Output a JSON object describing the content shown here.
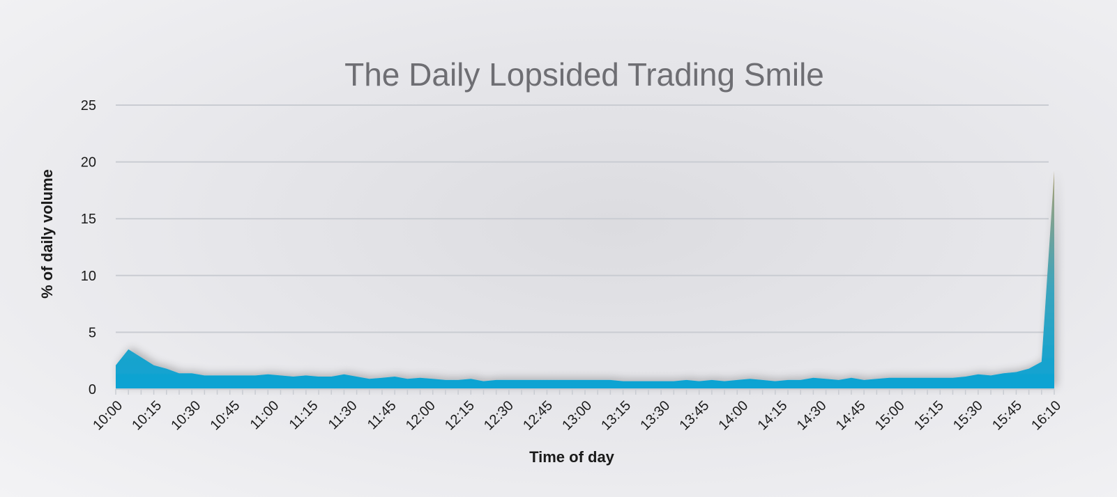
{
  "chart_data": {
    "type": "area",
    "title": "The Daily Lopsided Trading Smile",
    "xlabel": "Time of day",
    "ylabel": "% of daily volume",
    "ylim": [
      0,
      25
    ],
    "yticks": [
      0,
      5,
      10,
      15,
      20,
      25
    ],
    "grid": true,
    "legend": "none",
    "x_tick_labels": [
      "10:00",
      "10:15",
      "10:30",
      "10:45",
      "11:00",
      "11:15",
      "11:30",
      "11:45",
      "12:00",
      "12:15",
      "12:30",
      "12:45",
      "13:00",
      "13:15",
      "13:30",
      "13:45",
      "14:00",
      "14:15",
      "14:30",
      "14:45",
      "15:00",
      "15:15",
      "15:30",
      "15:45",
      "16:10"
    ],
    "series": [
      {
        "name": "% of daily volume",
        "color": "#0aa3d4",
        "peak_color": "#b0a070",
        "values": [
          2.1,
          3.5,
          2.8,
          2.1,
          1.8,
          1.4,
          1.4,
          1.2,
          1.2,
          1.2,
          1.2,
          1.2,
          1.3,
          1.2,
          1.1,
          1.2,
          1.1,
          1.1,
          1.3,
          1.1,
          0.9,
          1.0,
          1.1,
          0.9,
          1.0,
          0.9,
          0.8,
          0.8,
          0.9,
          0.7,
          0.8,
          0.8,
          0.8,
          0.8,
          0.8,
          0.8,
          0.8,
          0.8,
          0.8,
          0.8,
          0.7,
          0.7,
          0.7,
          0.7,
          0.7,
          0.8,
          0.7,
          0.8,
          0.7,
          0.8,
          0.9,
          0.8,
          0.7,
          0.8,
          0.8,
          1.0,
          0.9,
          0.8,
          1.0,
          0.8,
          0.9,
          1.0,
          1.0,
          1.0,
          1.0,
          1.0,
          1.0,
          1.1,
          1.3,
          1.2,
          1.4,
          1.5,
          1.8,
          2.4,
          19.2
        ]
      }
    ]
  }
}
